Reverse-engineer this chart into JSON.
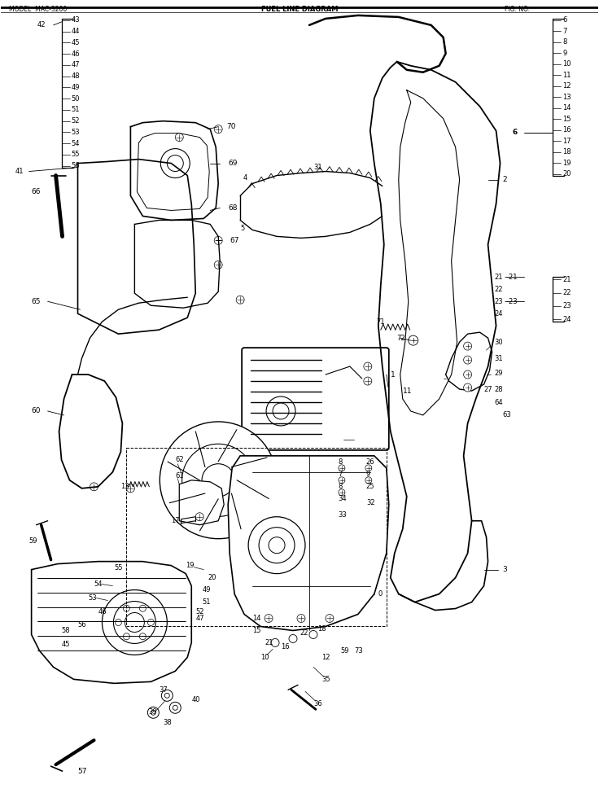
{
  "background_color": "#ffffff",
  "line_color": "#000000",
  "fig_width": 7.36,
  "fig_height": 9.9,
  "dpi": 100,
  "header_line1": "MODEL  MAC-3200",
  "header_title": "FUEL LINE DIAGRAM",
  "header_right": "FIG. NO.",
  "left_bracket_nums": [
    "43",
    "44",
    "45",
    "46",
    "47",
    "48",
    "49",
    "50",
    "51",
    "52",
    "53",
    "54",
    "55",
    "56"
  ],
  "left_bracket_extra": "42",
  "right_bracket_top_nums": [
    "6",
    "7",
    "8",
    "9",
    "10",
    "11",
    "12",
    "13",
    "14",
    "15",
    "16",
    "17",
    "18",
    "19",
    "20"
  ],
  "right_bracket_mid_nums": [
    "21",
    "22",
    "23",
    "24"
  ]
}
